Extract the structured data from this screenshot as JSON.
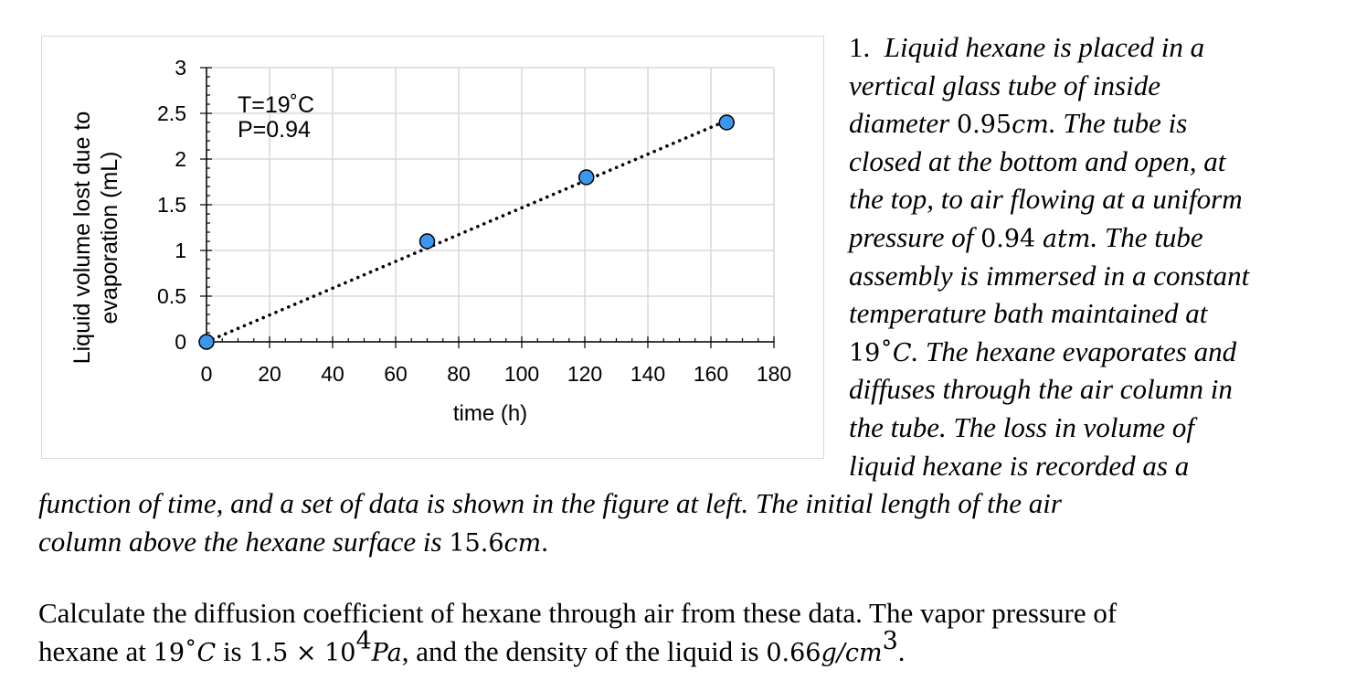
{
  "chart_data": {
    "type": "scatter",
    "xlabel": "time (h)",
    "ylabel_lines": [
      "Liquid volume lost due to",
      "evaporation (mL)"
    ],
    "xlim": [
      0,
      180
    ],
    "ylim": [
      0,
      3
    ],
    "x_ticks": [
      "0",
      "20",
      "40",
      "60",
      "80",
      "100",
      "120",
      "140",
      "160",
      "180"
    ],
    "y_ticks": [
      "0",
      "0.5",
      "1",
      "1.5",
      "2",
      "2.5",
      "3"
    ],
    "x_minor_step": 5,
    "y_minor_step": 0.1,
    "grid": true,
    "annotation": [
      "T=19˚C",
      "P=0.94"
    ],
    "points": [
      {
        "x": 0,
        "y": 0
      },
      {
        "x": 70,
        "y": 1.1
      },
      {
        "x": 120.5,
        "y": 1.8
      },
      {
        "x": 165,
        "y": 2.4
      }
    ],
    "trendline": {
      "style": "dotted",
      "x": [
        0,
        165
      ],
      "y": [
        0,
        2.42
      ]
    },
    "colors": {
      "point_fill": "#3d96ed",
      "point_edge": "#000000",
      "grid": "#d9d9d9",
      "axis": "#000000"
    }
  },
  "problem": {
    "number": "1.",
    "lines": [
      "Liquid hexane is placed in a",
      "vertical glass tube of inside",
      "diameter",
      "0.95",
      "cm",
      ". The tube is",
      "closed at the bottom and open, at",
      "the top, to air flowing at a uniform",
      "pressure of",
      "0.94",
      "atm",
      ". The tube",
      "assembly is immersed in a constant",
      "temperature bath maintained at",
      "19˚",
      "C",
      ". The hexane evaporates and",
      "diffuses through the air column in",
      "the tube. The loss in volume of",
      "liquid hexane is recorded as a",
      "function of time, and a set of data is shown in the figure at left. The initial length of the air",
      "column above the hexane surface is",
      "15.6",
      "cm",
      "."
    ]
  },
  "question": {
    "line1": "Calculate the diffusion coefficient of hexane through air from these data. The vapor pressure of",
    "line2_a": "hexane at ",
    "temp": "19˚",
    "temp_unit": "C",
    "line2_b": " is ",
    "vp": "1.5 × 10",
    "vp_exp": "4",
    "vp_unit": "Pa",
    "line2_c": ", and the density of the liquid is ",
    "density": "0.66",
    "density_unit": "g/cm",
    "density_exp": "3",
    "line2_d": "."
  }
}
